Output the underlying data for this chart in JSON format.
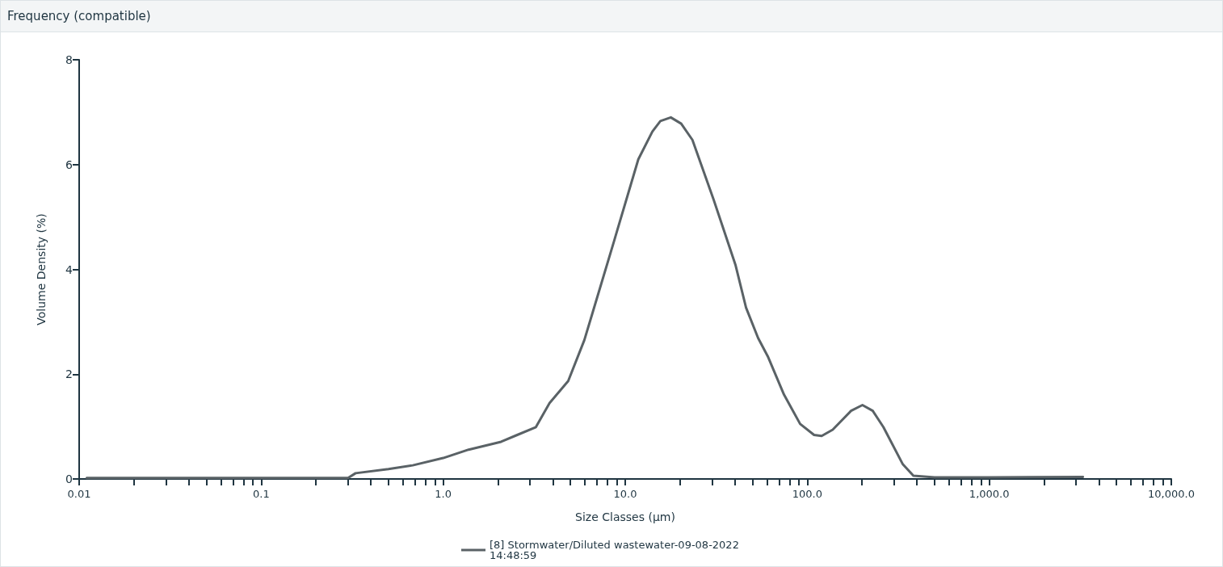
{
  "chart_data": {
    "type": "line",
    "title": "Frequency (compatible)",
    "xlabel": "Size Classes (µm)",
    "ylabel": "Volume Density (%)",
    "log": "x",
    "grid": false,
    "legend": "bottom",
    "marker": "none",
    "line_style": "solid",
    "xlim": [
      0.01,
      10000
    ],
    "ylim": [
      0,
      8
    ],
    "yticks": [
      0,
      2,
      4,
      6,
      8
    ],
    "xticks": [
      {
        "value": 0.01,
        "label": "0.01"
      },
      {
        "value": 0.02,
        "label": null
      },
      {
        "value": 0.03,
        "label": null
      },
      {
        "value": 0.04,
        "label": null
      },
      {
        "value": 0.05,
        "label": null
      },
      {
        "value": 0.06,
        "label": null
      },
      {
        "value": 0.07,
        "label": null
      },
      {
        "value": 0.08,
        "label": null
      },
      {
        "value": 0.09,
        "label": null
      },
      {
        "value": 0.1,
        "label": "0.1"
      },
      {
        "value": 0.2,
        "label": null
      },
      {
        "value": 0.3,
        "label": null
      },
      {
        "value": 0.4,
        "label": null
      },
      {
        "value": 0.5,
        "label": null
      },
      {
        "value": 0.6,
        "label": null
      },
      {
        "value": 0.7,
        "label": null
      },
      {
        "value": 0.8,
        "label": null
      },
      {
        "value": 0.9,
        "label": null
      },
      {
        "value": 1,
        "label": "1.0"
      },
      {
        "value": 2,
        "label": null
      },
      {
        "value": 3,
        "label": null
      },
      {
        "value": 4,
        "label": null
      },
      {
        "value": 5,
        "label": null
      },
      {
        "value": 6,
        "label": null
      },
      {
        "value": 7,
        "label": null
      },
      {
        "value": 8,
        "label": null
      },
      {
        "value": 9,
        "label": null
      },
      {
        "value": 10,
        "label": "10.0"
      },
      {
        "value": 20,
        "label": null
      },
      {
        "value": 30,
        "label": null
      },
      {
        "value": 40,
        "label": null
      },
      {
        "value": 50,
        "label": null
      },
      {
        "value": 60,
        "label": null
      },
      {
        "value": 70,
        "label": null
      },
      {
        "value": 80,
        "label": null
      },
      {
        "value": 90,
        "label": null
      },
      {
        "value": 100,
        "label": "100.0"
      },
      {
        "value": 200,
        "label": null
      },
      {
        "value": 300,
        "label": null
      },
      {
        "value": 400,
        "label": null
      },
      {
        "value": 500,
        "label": null
      },
      {
        "value": 600,
        "label": null
      },
      {
        "value": 700,
        "label": null
      },
      {
        "value": 800,
        "label": null
      },
      {
        "value": 900,
        "label": null
      },
      {
        "value": 1000,
        "label": "1,000.0"
      },
      {
        "value": 2000,
        "label": null
      },
      {
        "value": 3000,
        "label": null
      },
      {
        "value": 4000,
        "label": null
      },
      {
        "value": 5000,
        "label": null
      },
      {
        "value": 6000,
        "label": null
      },
      {
        "value": 7000,
        "label": null
      },
      {
        "value": 8000,
        "label": null
      },
      {
        "value": 9000,
        "label": null
      },
      {
        "value": 10000,
        "label": "10,000.0"
      }
    ],
    "series": [
      {
        "name": "[8] Stormwater/Diluted wastewater-09-08-2022 14:48:59",
        "color": "#5a6266",
        "x": [
          0.011,
          0.1,
          0.3,
          0.33,
          0.5,
          0.68,
          1.0,
          1.38,
          2.08,
          2.55,
          3.23,
          3.84,
          4.86,
          5.96,
          6.6,
          8.7,
          11.8,
          14.1,
          15.6,
          17.8,
          20.3,
          23.4,
          30.6,
          40.3,
          46.1,
          53.7,
          60.7,
          74.5,
          91.4,
          109,
          120,
          138,
          174,
          201,
          229,
          262,
          335,
          383,
          500,
          1000,
          3270
        ],
        "values": [
          0.02,
          0.02,
          0.02,
          0.11,
          0.19,
          0.26,
          0.4,
          0.56,
          0.71,
          0.84,
          0.99,
          1.45,
          1.87,
          2.65,
          3.16,
          4.55,
          6.1,
          6.63,
          6.83,
          6.9,
          6.78,
          6.47,
          5.33,
          4.09,
          3.27,
          2.69,
          2.34,
          1.61,
          1.05,
          0.84,
          0.82,
          0.94,
          1.3,
          1.41,
          1.3,
          0.99,
          0.28,
          0.06,
          0.03,
          0.03,
          0.04
        ]
      }
    ]
  }
}
